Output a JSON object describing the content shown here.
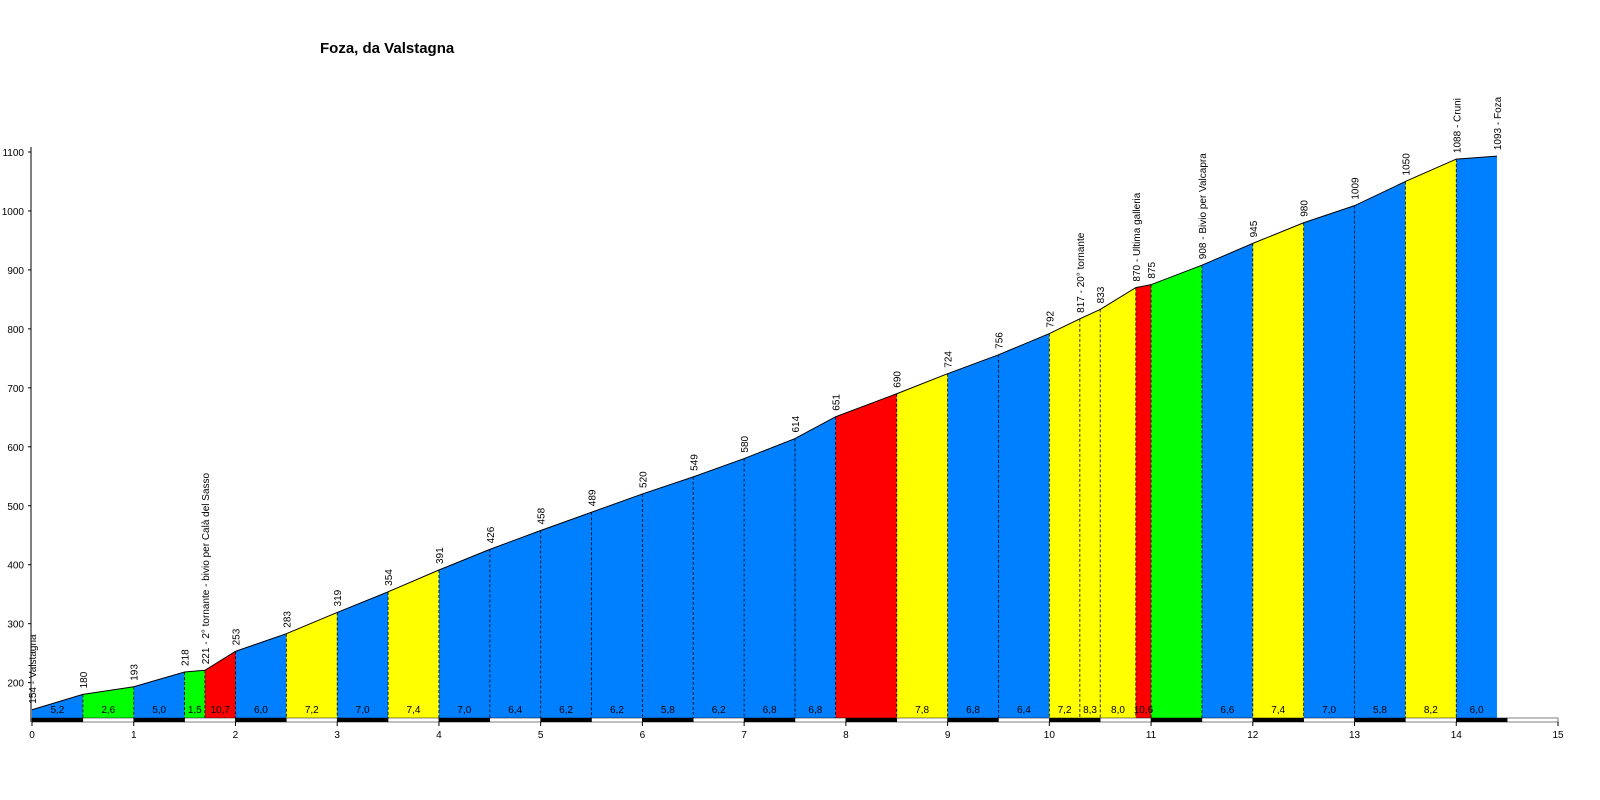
{
  "chart_data": {
    "type": "area",
    "title": "Foza, da Valstagna",
    "xlim": [
      0,
      15
    ],
    "ylim": [
      140,
      1100
    ],
    "xticks": [
      0,
      1,
      2,
      3,
      4,
      5,
      6,
      7,
      8,
      9,
      10,
      11,
      12,
      13,
      14,
      15
    ],
    "yticks": [
      200,
      300,
      400,
      500,
      600,
      700,
      800,
      900,
      1000,
      1100
    ],
    "points": [
      {
        "x": 0.0,
        "elev": 154,
        "label": "154 - Valstagna"
      },
      {
        "x": 0.5,
        "elev": 180,
        "label": "180"
      },
      {
        "x": 1.0,
        "elev": 193,
        "label": "193"
      },
      {
        "x": 1.5,
        "elev": 218,
        "label": "218"
      },
      {
        "x": 1.7,
        "elev": 221,
        "label": "221 - 2° tornante - bivio per Calà del Sasso"
      },
      {
        "x": 2.0,
        "elev": 253,
        "label": "253"
      },
      {
        "x": 2.5,
        "elev": 283,
        "label": "283"
      },
      {
        "x": 3.0,
        "elev": 319,
        "label": "319"
      },
      {
        "x": 3.5,
        "elev": 354,
        "label": "354"
      },
      {
        "x": 4.0,
        "elev": 391,
        "label": "391"
      },
      {
        "x": 4.5,
        "elev": 426,
        "label": "426"
      },
      {
        "x": 5.0,
        "elev": 458,
        "label": "458"
      },
      {
        "x": 5.5,
        "elev": 489,
        "label": "489"
      },
      {
        "x": 6.0,
        "elev": 520,
        "label": "520"
      },
      {
        "x": 6.5,
        "elev": 549,
        "label": "549"
      },
      {
        "x": 7.0,
        "elev": 580,
        "label": "580"
      },
      {
        "x": 7.5,
        "elev": 614,
        "label": "614"
      },
      {
        "x": 7.9,
        "elev": 651,
        "label": "651"
      },
      {
        "x": 8.5,
        "elev": 690,
        "label": "690"
      },
      {
        "x": 9.0,
        "elev": 724,
        "label": "724"
      },
      {
        "x": 9.5,
        "elev": 756,
        "label": "756"
      },
      {
        "x": 10.0,
        "elev": 792,
        "label": "792"
      },
      {
        "x": 10.3,
        "elev": 817,
        "label": "817 - 20° tornante"
      },
      {
        "x": 10.5,
        "elev": 833,
        "label": "833"
      },
      {
        "x": 10.85,
        "elev": 870,
        "label": "870 - Ultima galleria"
      },
      {
        "x": 11.0,
        "elev": 875,
        "label": "875"
      },
      {
        "x": 11.5,
        "elev": 908,
        "label": "908 - Bivio per Valcapra"
      },
      {
        "x": 12.0,
        "elev": 945,
        "label": "945"
      },
      {
        "x": 12.5,
        "elev": 980,
        "label": "980"
      },
      {
        "x": 13.0,
        "elev": 1009,
        "label": "1009"
      },
      {
        "x": 13.5,
        "elev": 1050,
        "label": "1050"
      },
      {
        "x": 14.0,
        "elev": 1088,
        "label": "1088 - Cruni"
      },
      {
        "x": 14.4,
        "elev": 1093,
        "label": "1093 - Foza"
      }
    ],
    "segments": [
      {
        "grade": "5,2",
        "color": "#0080ff"
      },
      {
        "grade": "2,6",
        "color": "#00ff00"
      },
      {
        "grade": "5,0",
        "color": "#0080ff"
      },
      {
        "grade": "1,5",
        "color": "#00ff00"
      },
      {
        "grade": "10,7",
        "color": "#ff0000"
      },
      {
        "grade": "6,0",
        "color": "#0080ff"
      },
      {
        "grade": "7,2",
        "color": "#ffff00"
      },
      {
        "grade": "7,0",
        "color": "#0080ff"
      },
      {
        "grade": "7,4",
        "color": "#ffff00"
      },
      {
        "grade": "7,0",
        "color": "#0080ff"
      },
      {
        "grade": "6,4",
        "color": "#0080ff"
      },
      {
        "grade": "6,2",
        "color": "#0080ff"
      },
      {
        "grade": "6,2",
        "color": "#0080ff"
      },
      {
        "grade": "5,8",
        "color": "#0080ff"
      },
      {
        "grade": "6,2",
        "color": "#0080ff"
      },
      {
        "grade": "6,8",
        "color": "#0080ff"
      },
      {
        "grade": "6,8",
        "color": "#0080ff"
      },
      {
        "grade": "",
        "color": "#ff0000"
      },
      {
        "grade": "7,8",
        "color": "#ffff00"
      },
      {
        "grade": "6,8",
        "color": "#0080ff"
      },
      {
        "grade": "6,4",
        "color": "#0080ff"
      },
      {
        "grade": "7,2",
        "color": "#ffff00"
      },
      {
        "grade": "8,3",
        "color": "#ffff00"
      },
      {
        "grade": "8,0",
        "color": "#ffff00"
      },
      {
        "grade": "10,6",
        "color": "#ff0000"
      },
      {
        "grade": "",
        "color": "#00ff00"
      },
      {
        "grade": "6,6",
        "color": "#0080ff"
      },
      {
        "grade": "7,4",
        "color": "#ffff00"
      },
      {
        "grade": "7,0",
        "color": "#0080ff"
      },
      {
        "grade": "5,8",
        "color": "#0080ff"
      },
      {
        "grade": "8,2",
        "color": "#ffff00"
      },
      {
        "grade": "6,0",
        "color": "#0080ff"
      },
      {
        "grade": "",
        "color": "#ffff00"
      },
      {
        "grade": "1,7",
        "color": "#00ff00"
      }
    ]
  }
}
